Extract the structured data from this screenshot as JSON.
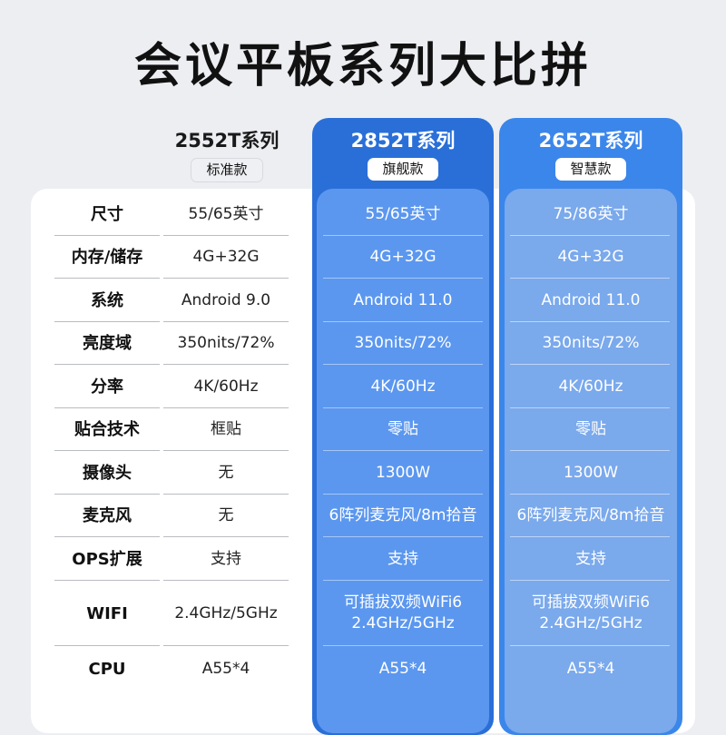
{
  "title": "会议平板系列大比拼",
  "columns": [
    {
      "name": "2552T系列",
      "tag": "标准款"
    },
    {
      "name": "2852T系列",
      "tag": "旗舰款"
    },
    {
      "name": "2652T系列",
      "tag": "智慧款"
    }
  ],
  "rows": [
    {
      "label": "尺寸",
      "values": [
        "55/65英寸",
        "55/65英寸",
        "75/86英寸"
      ]
    },
    {
      "label": "内存/储存",
      "values": [
        "4G+32G",
        "4G+32G",
        "4G+32G"
      ]
    },
    {
      "label": "系统",
      "values": [
        "Android 9.0",
        "Android 11.0",
        "Android 11.0"
      ]
    },
    {
      "label": "亮度域",
      "values": [
        "350nits/72%",
        "350nits/72%",
        "350nits/72%"
      ]
    },
    {
      "label": "分率",
      "values": [
        "4K/60Hz",
        "4K/60Hz",
        "4K/60Hz"
      ]
    },
    {
      "label": "贴合技术",
      "values": [
        "框贴",
        "零贴",
        "零贴"
      ]
    },
    {
      "label": "摄像头",
      "values": [
        "无",
        "1300W",
        "1300W"
      ]
    },
    {
      "label": "麦克风",
      "values": [
        "无",
        "6阵列麦克风/8m拾音",
        "6阵列麦克风/8m拾音"
      ]
    },
    {
      "label": "OPS扩展",
      "values": [
        "支持",
        "支持",
        "支持"
      ]
    },
    {
      "label": "WIFI",
      "values": [
        "2.4GHz/5GHz",
        "可插拔双频WiFi6\n2.4GHz/5GHz",
        "可插拔双频WiFi6\n2.4GHz/5GHz"
      ]
    },
    {
      "label": "CPU",
      "values": [
        "A55*4",
        "A55*4",
        "A55*4"
      ]
    }
  ],
  "colors": {
    "background": "#eceef2",
    "flagship_card": "#2a6fd8",
    "smart_card": "#3b86ea"
  }
}
